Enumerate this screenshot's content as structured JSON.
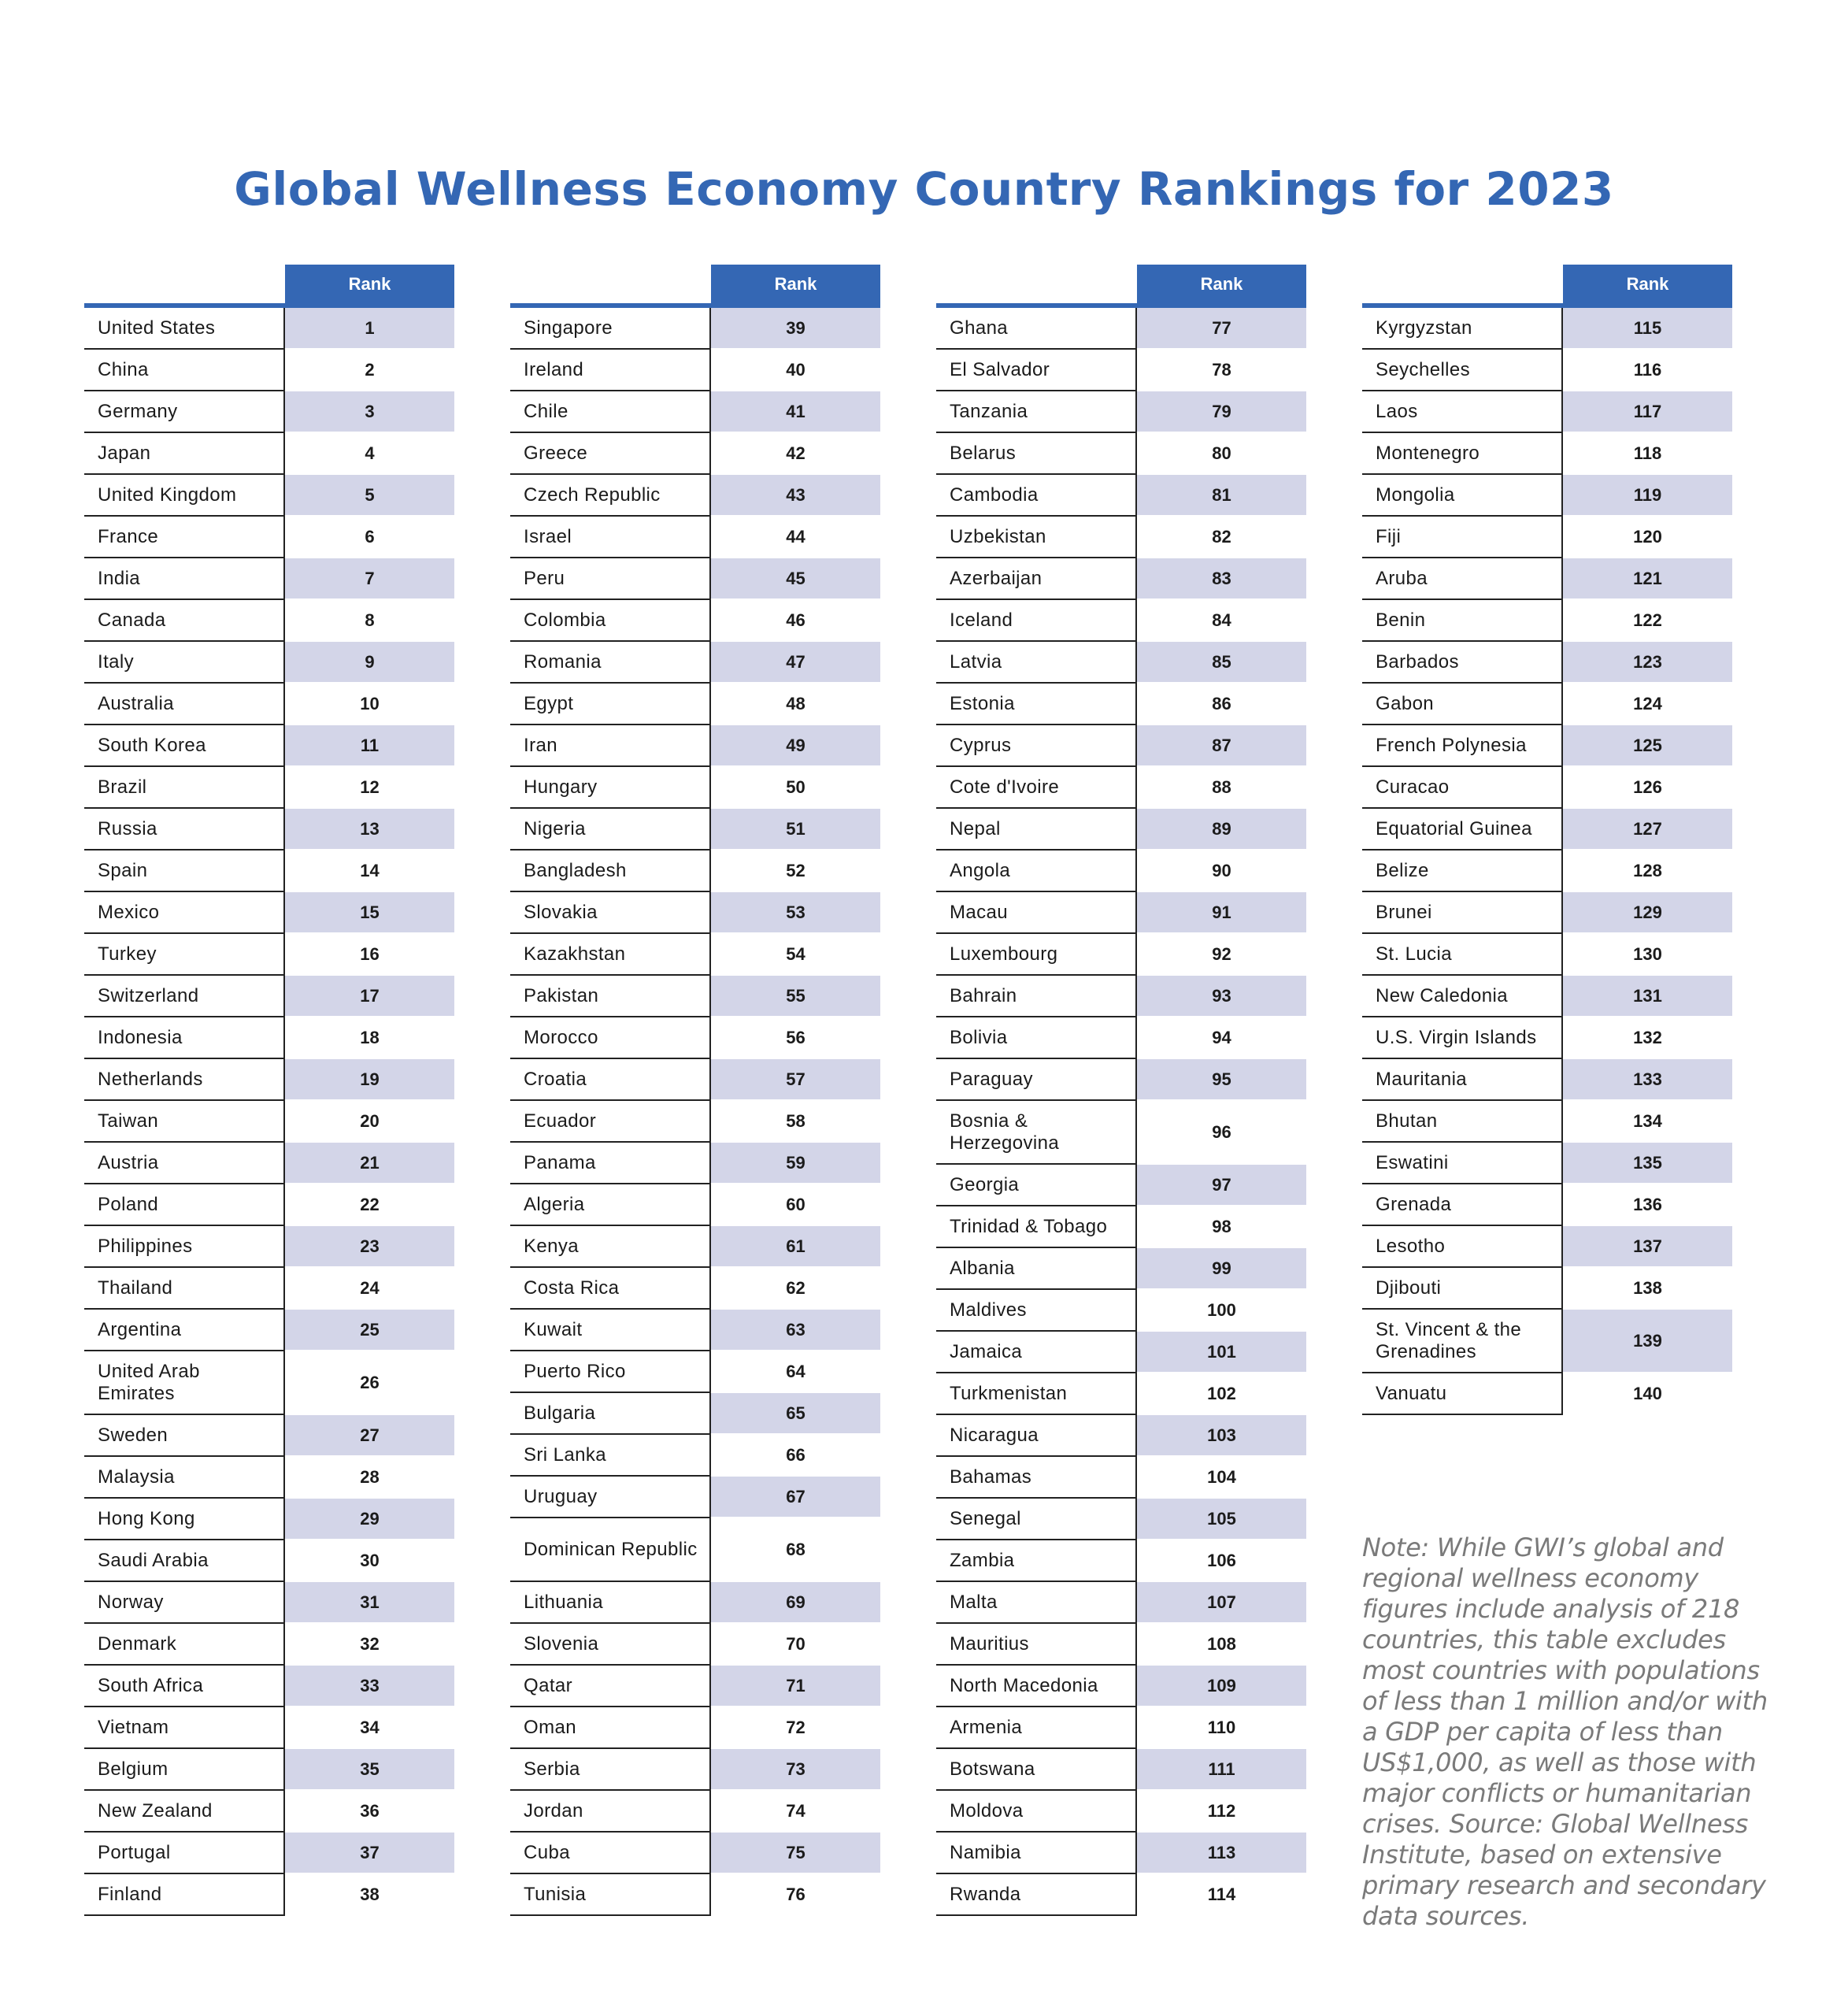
{
  "title": "Global Wellness Economy Country Rankings for 2023",
  "header": {
    "rank_label": "Rank"
  },
  "colors": {
    "accent": "#3467b4",
    "shade": "#d3d5e8",
    "note_text": "#7a7a7a"
  },
  "tables": [
    {
      "rows": [
        {
          "country": "United States",
          "rank": "1"
        },
        {
          "country": "China",
          "rank": "2"
        },
        {
          "country": "Germany",
          "rank": "3"
        },
        {
          "country": "Japan",
          "rank": "4"
        },
        {
          "country": "United Kingdom",
          "rank": "5"
        },
        {
          "country": "France",
          "rank": "6"
        },
        {
          "country": "India",
          "rank": "7"
        },
        {
          "country": "Canada",
          "rank": "8"
        },
        {
          "country": "Italy",
          "rank": "9"
        },
        {
          "country": "Australia",
          "rank": "10"
        },
        {
          "country": "South Korea",
          "rank": "11"
        },
        {
          "country": "Brazil",
          "rank": "12"
        },
        {
          "country": "Russia",
          "rank": "13"
        },
        {
          "country": "Spain",
          "rank": "14"
        },
        {
          "country": "Mexico",
          "rank": "15"
        },
        {
          "country": "Turkey",
          "rank": "16"
        },
        {
          "country": "Switzerland",
          "rank": "17"
        },
        {
          "country": "Indonesia",
          "rank": "18"
        },
        {
          "country": "Netherlands",
          "rank": "19"
        },
        {
          "country": "Taiwan",
          "rank": "20"
        },
        {
          "country": "Austria",
          "rank": "21"
        },
        {
          "country": "Poland",
          "rank": "22"
        },
        {
          "country": "Philippines",
          "rank": "23"
        },
        {
          "country": "Thailand",
          "rank": "24"
        },
        {
          "country": "Argentina",
          "rank": "25"
        },
        {
          "country": "United Arab Emirates",
          "rank": "26"
        },
        {
          "country": "Sweden",
          "rank": "27"
        },
        {
          "country": "Malaysia",
          "rank": "28"
        },
        {
          "country": "Hong Kong",
          "rank": "29"
        },
        {
          "country": "Saudi Arabia",
          "rank": "30"
        },
        {
          "country": "Norway",
          "rank": "31"
        },
        {
          "country": "Denmark",
          "rank": "32"
        },
        {
          "country": "South Africa",
          "rank": "33"
        },
        {
          "country": "Vietnam",
          "rank": "34"
        },
        {
          "country": "Belgium",
          "rank": "35"
        },
        {
          "country": "New Zealand",
          "rank": "36"
        },
        {
          "country": "Portugal",
          "rank": "37"
        },
        {
          "country": "Finland",
          "rank": "38"
        }
      ]
    },
    {
      "rows": [
        {
          "country": "Singapore",
          "rank": "39"
        },
        {
          "country": "Ireland",
          "rank": "40"
        },
        {
          "country": "Chile",
          "rank": "41"
        },
        {
          "country": "Greece",
          "rank": "42"
        },
        {
          "country": "Czech Republic",
          "rank": "43"
        },
        {
          "country": "Israel",
          "rank": "44"
        },
        {
          "country": "Peru",
          "rank": "45"
        },
        {
          "country": "Colombia",
          "rank": "46"
        },
        {
          "country": "Romania",
          "rank": "47"
        },
        {
          "country": "Egypt",
          "rank": "48"
        },
        {
          "country": "Iran",
          "rank": "49"
        },
        {
          "country": "Hungary",
          "rank": "50"
        },
        {
          "country": "Nigeria",
          "rank": "51"
        },
        {
          "country": "Bangladesh",
          "rank": "52"
        },
        {
          "country": "Slovakia",
          "rank": "53"
        },
        {
          "country": "Kazakhstan",
          "rank": "54"
        },
        {
          "country": "Pakistan",
          "rank": "55"
        },
        {
          "country": "Morocco",
          "rank": "56"
        },
        {
          "country": "Croatia",
          "rank": "57"
        },
        {
          "country": "Ecuador",
          "rank": "58"
        },
        {
          "country": "Panama",
          "rank": "59"
        },
        {
          "country": "Algeria",
          "rank": "60"
        },
        {
          "country": "Kenya",
          "rank": "61"
        },
        {
          "country": "Costa Rica",
          "rank": "62"
        },
        {
          "country": "Kuwait",
          "rank": "63"
        },
        {
          "country": "Puerto Rico",
          "rank": "64"
        },
        {
          "country": "Bulgaria",
          "rank": "65"
        },
        {
          "country": "Sri Lanka",
          "rank": "66"
        },
        {
          "country": "Uruguay",
          "rank": "67"
        },
        {
          "country": "Dominican Republic",
          "rank": "68"
        },
        {
          "country": "Lithuania",
          "rank": "69"
        },
        {
          "country": "Slovenia",
          "rank": "70"
        },
        {
          "country": "Qatar",
          "rank": "71"
        },
        {
          "country": "Oman",
          "rank": "72"
        },
        {
          "country": "Serbia",
          "rank": "73"
        },
        {
          "country": "Jordan",
          "rank": "74"
        },
        {
          "country": "Cuba",
          "rank": "75"
        },
        {
          "country": "Tunisia",
          "rank": "76"
        }
      ]
    },
    {
      "rows": [
        {
          "country": "Ghana",
          "rank": "77"
        },
        {
          "country": "El Salvador",
          "rank": "78"
        },
        {
          "country": "Tanzania",
          "rank": "79"
        },
        {
          "country": "Belarus",
          "rank": "80"
        },
        {
          "country": "Cambodia",
          "rank": "81"
        },
        {
          "country": "Uzbekistan",
          "rank": "82"
        },
        {
          "country": "Azerbaijan",
          "rank": "83"
        },
        {
          "country": "Iceland",
          "rank": "84"
        },
        {
          "country": "Latvia",
          "rank": "85"
        },
        {
          "country": "Estonia",
          "rank": "86"
        },
        {
          "country": "Cyprus",
          "rank": "87"
        },
        {
          "country": "Cote d'Ivoire",
          "rank": "88"
        },
        {
          "country": "Nepal",
          "rank": "89"
        },
        {
          "country": "Angola",
          "rank": "90"
        },
        {
          "country": "Macau",
          "rank": "91"
        },
        {
          "country": "Luxembourg",
          "rank": "92"
        },
        {
          "country": "Bahrain",
          "rank": "93"
        },
        {
          "country": "Bolivia",
          "rank": "94"
        },
        {
          "country": "Paraguay",
          "rank": "95"
        },
        {
          "country": "Bosnia & Herzegovina",
          "rank": "96"
        },
        {
          "country": "Georgia",
          "rank": "97"
        },
        {
          "country": "Trinidad & Tobago",
          "rank": "98"
        },
        {
          "country": "Albania",
          "rank": "99"
        },
        {
          "country": "Maldives",
          "rank": "100"
        },
        {
          "country": "Jamaica",
          "rank": "101"
        },
        {
          "country": "Turkmenistan",
          "rank": "102"
        },
        {
          "country": "Nicaragua",
          "rank": "103"
        },
        {
          "country": "Bahamas",
          "rank": "104"
        },
        {
          "country": "Senegal",
          "rank": "105"
        },
        {
          "country": "Zambia",
          "rank": "106"
        },
        {
          "country": "Malta",
          "rank": "107"
        },
        {
          "country": "Mauritius",
          "rank": "108"
        },
        {
          "country": "North Macedonia",
          "rank": "109"
        },
        {
          "country": "Armenia",
          "rank": "110"
        },
        {
          "country": "Botswana",
          "rank": "111"
        },
        {
          "country": "Moldova",
          "rank": "112"
        },
        {
          "country": "Namibia",
          "rank": "113"
        },
        {
          "country": "Rwanda",
          "rank": "114"
        }
      ]
    },
    {
      "rows": [
        {
          "country": "Kyrgyzstan",
          "rank": "115"
        },
        {
          "country": "Seychelles",
          "rank": "116"
        },
        {
          "country": "Laos",
          "rank": "117"
        },
        {
          "country": "Montenegro",
          "rank": "118"
        },
        {
          "country": "Mongolia",
          "rank": "119"
        },
        {
          "country": "Fiji",
          "rank": "120"
        },
        {
          "country": "Aruba",
          "rank": "121"
        },
        {
          "country": "Benin",
          "rank": "122"
        },
        {
          "country": "Barbados",
          "rank": "123"
        },
        {
          "country": "Gabon",
          "rank": "124"
        },
        {
          "country": "French Polynesia",
          "rank": "125"
        },
        {
          "country": "Curacao",
          "rank": "126"
        },
        {
          "country": "Equatorial Guinea",
          "rank": "127"
        },
        {
          "country": "Belize",
          "rank": "128"
        },
        {
          "country": "Brunei",
          "rank": "129"
        },
        {
          "country": "St. Lucia",
          "rank": "130"
        },
        {
          "country": "New Caledonia",
          "rank": "131"
        },
        {
          "country": "U.S. Virgin Islands",
          "rank": "132"
        },
        {
          "country": "Mauritania",
          "rank": "133"
        },
        {
          "country": "Bhutan",
          "rank": "134"
        },
        {
          "country": "Eswatini",
          "rank": "135"
        },
        {
          "country": "Grenada",
          "rank": "136"
        },
        {
          "country": "Lesotho",
          "rank": "137"
        },
        {
          "country": "Djibouti",
          "rank": "138"
        },
        {
          "country": "St. Vincent & the Grenadines",
          "rank": "139"
        },
        {
          "country": "Vanuatu",
          "rank": "140"
        }
      ]
    }
  ],
  "note": "Note: While GWI’s global and regional wellness economy figures include analysis of 218 countries, this table excludes most countries with populations of less than 1 million and/or with a GDP per capita of less than US$1,000, as well as those with major conflicts or humanitarian crises. Source: Global Wellness Institute, based on extensive primary research and secondary data sources."
}
